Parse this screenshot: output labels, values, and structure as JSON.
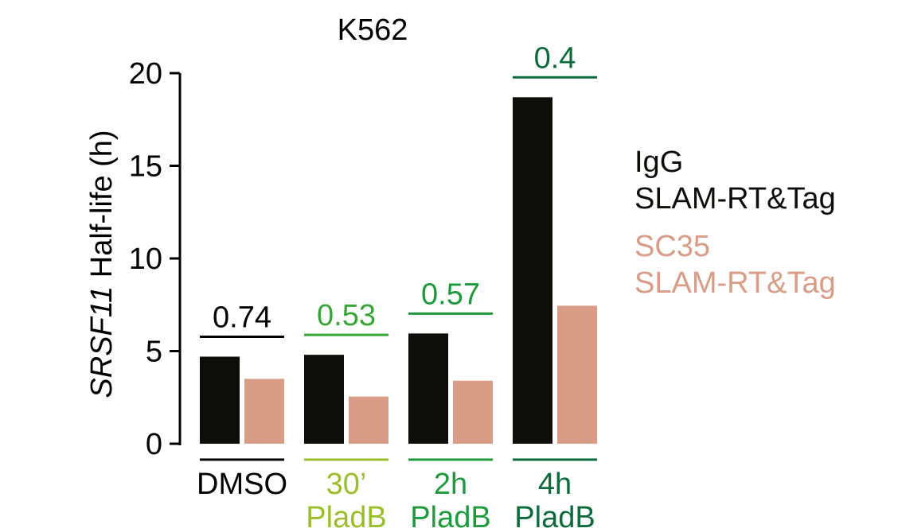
{
  "chart_data": {
    "type": "bar",
    "title": "K562",
    "ylabel_italic": "SRSF11",
    "ylabel_rest": " Half-life (h)",
    "ylim": [
      0,
      20
    ],
    "yticks": [
      0,
      5,
      10,
      15,
      20
    ],
    "grid": false,
    "legend_placement": "right",
    "categories": [
      {
        "lines": [
          "DMSO"
        ],
        "color": "#000000"
      },
      {
        "lines": [
          "30’",
          "PladB"
        ],
        "color": "#9bbf2a"
      },
      {
        "lines": [
          "2h",
          "PladB"
        ],
        "color": "#1e9a3c"
      },
      {
        "lines": [
          "4h",
          "PladB"
        ],
        "color": "#0b6b3a"
      }
    ],
    "series": [
      {
        "name": "IgG SLAM-RT&Tag",
        "legend_lines": [
          "IgG",
          "SLAM-RT&Tag"
        ],
        "color": "#0d0d0a",
        "values": [
          4.7,
          4.8,
          5.95,
          18.7
        ]
      },
      {
        "name": "SC35 SLAM-RT&Tag",
        "legend_lines": [
          "SC35",
          "SLAM-RT&Tag"
        ],
        "color": "#d99c87",
        "values": [
          3.5,
          2.55,
          3.4,
          7.45
        ]
      }
    ],
    "ratios": [
      {
        "label": "0.74",
        "color": "#000000"
      },
      {
        "label": "0.53",
        "color": "#36a535"
      },
      {
        "label": "0.57",
        "color": "#1e9a3c"
      },
      {
        "label": "0.4",
        "color": "#0b6b3a"
      }
    ]
  }
}
